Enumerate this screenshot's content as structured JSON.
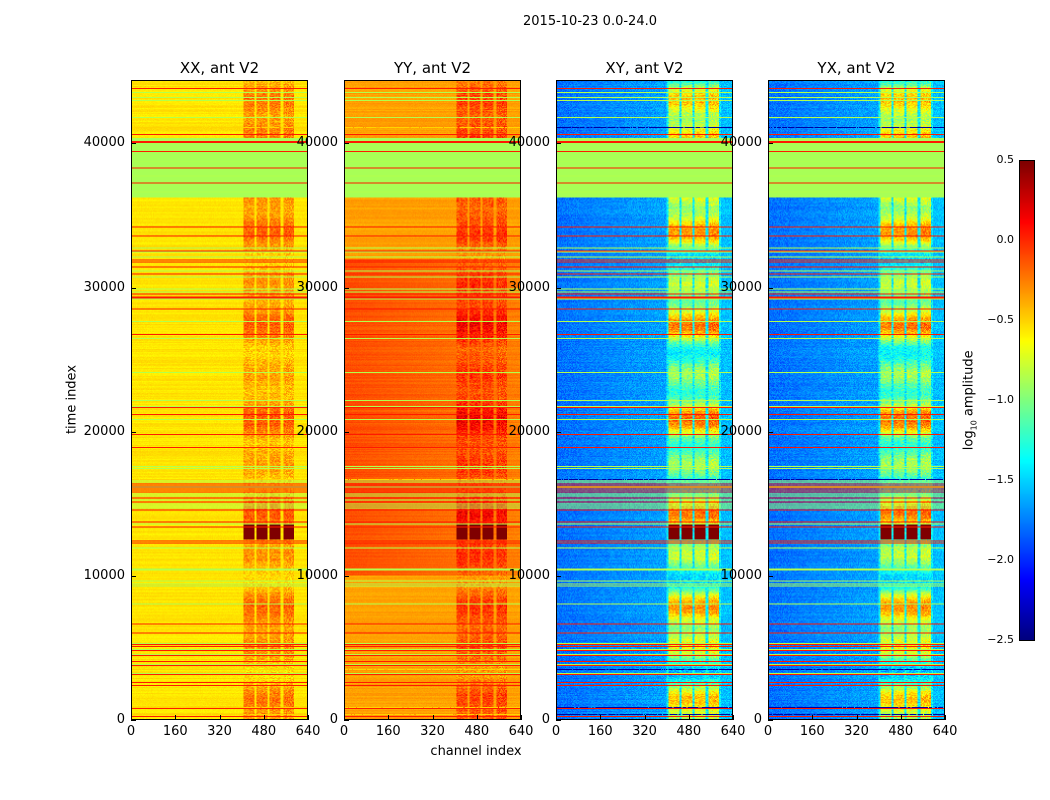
{
  "chart_data": {
    "type": "heatmap",
    "title": "2015-10-23 0.0-24.0",
    "xlabel": "channel index",
    "ylabel": "time index",
    "xlim": [
      0,
      640
    ],
    "ylim": [
      0,
      44400
    ],
    "xticks": [
      "0",
      "160",
      "320",
      "480",
      "640"
    ],
    "xtick_values": [
      0,
      160,
      320,
      480,
      640
    ],
    "yticks": [
      "0",
      "10000",
      "20000",
      "30000",
      "40000"
    ],
    "ytick_values": [
      0,
      10000,
      20000,
      30000,
      40000
    ],
    "colormap": "jet",
    "colorbar": {
      "label_prefix": "log",
      "label_sub": "10",
      "label_suffix": " amplitude",
      "range": [
        -2.5,
        0.5
      ],
      "ticks": [
        "0.5",
        "0.0",
        "−0.5",
        "−1.0",
        "−1.5",
        "−2.0",
        "−2.5"
      ],
      "tick_values": [
        0.5,
        0.0,
        -0.5,
        -1.0,
        -1.5,
        -2.0,
        -2.5
      ]
    },
    "panels": [
      {
        "title": "XX, ant V2",
        "baseline_log10": -0.55,
        "rfi_channels": [
          400,
          600
        ],
        "rfi_boost": 0.35
      },
      {
        "title": "YY, ant V2",
        "baseline_log10": -0.35,
        "rfi_channels": [
          400,
          600
        ],
        "rfi_boost": 0.3
      },
      {
        "title": "XY, ant V2",
        "baseline_log10": -1.8,
        "rfi_channels": [
          400,
          600
        ],
        "rfi_boost": 1.2
      },
      {
        "title": "YX, ant V2",
        "baseline_log10": -1.8,
        "rfi_channels": [
          400,
          600
        ],
        "rfi_boost": 1.2
      }
    ],
    "flagged_time_band": [
      36300,
      40500
    ],
    "strong_rfi_time_band": [
      12500,
      13600
    ]
  }
}
